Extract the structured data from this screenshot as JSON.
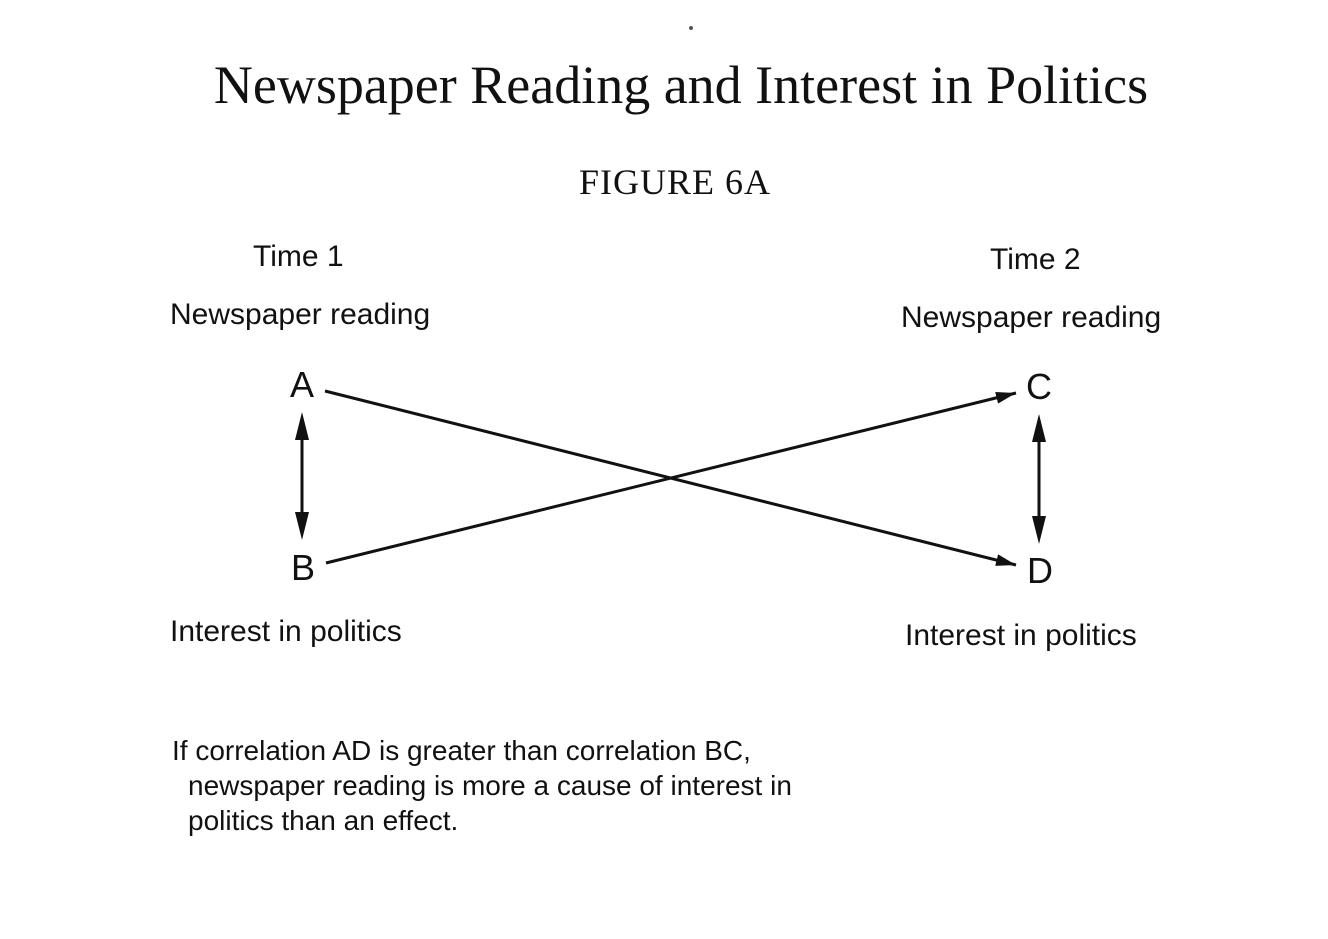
{
  "title": "Newspaper Reading and Interest in Politics",
  "figure_label": {
    "first_letter": "F",
    "rest": "IGURE",
    "number": "6A"
  },
  "left_panel": {
    "time_label": "Time 1",
    "top_label": "Newspaper reading",
    "bottom_label": "Interest in politics",
    "top_node": "A",
    "bottom_node": "B"
  },
  "right_panel": {
    "time_label": "Time 2",
    "top_label": "Newspaper reading",
    "bottom_label": "Interest in politics",
    "top_node": "C",
    "bottom_node": "D"
  },
  "caption": {
    "line1": "If correlation AD is greater than correlation BC,",
    "line2": "newspaper reading is more a cause of interest in",
    "line3": "politics than an effect."
  },
  "arrows": [
    {
      "from": "A",
      "to": "D",
      "style": "directed"
    },
    {
      "from": "B",
      "to": "C",
      "style": "directed"
    },
    {
      "from": "A",
      "to": "B",
      "style": "bidirectional"
    },
    {
      "from": "C",
      "to": "D",
      "style": "bidirectional"
    }
  ]
}
